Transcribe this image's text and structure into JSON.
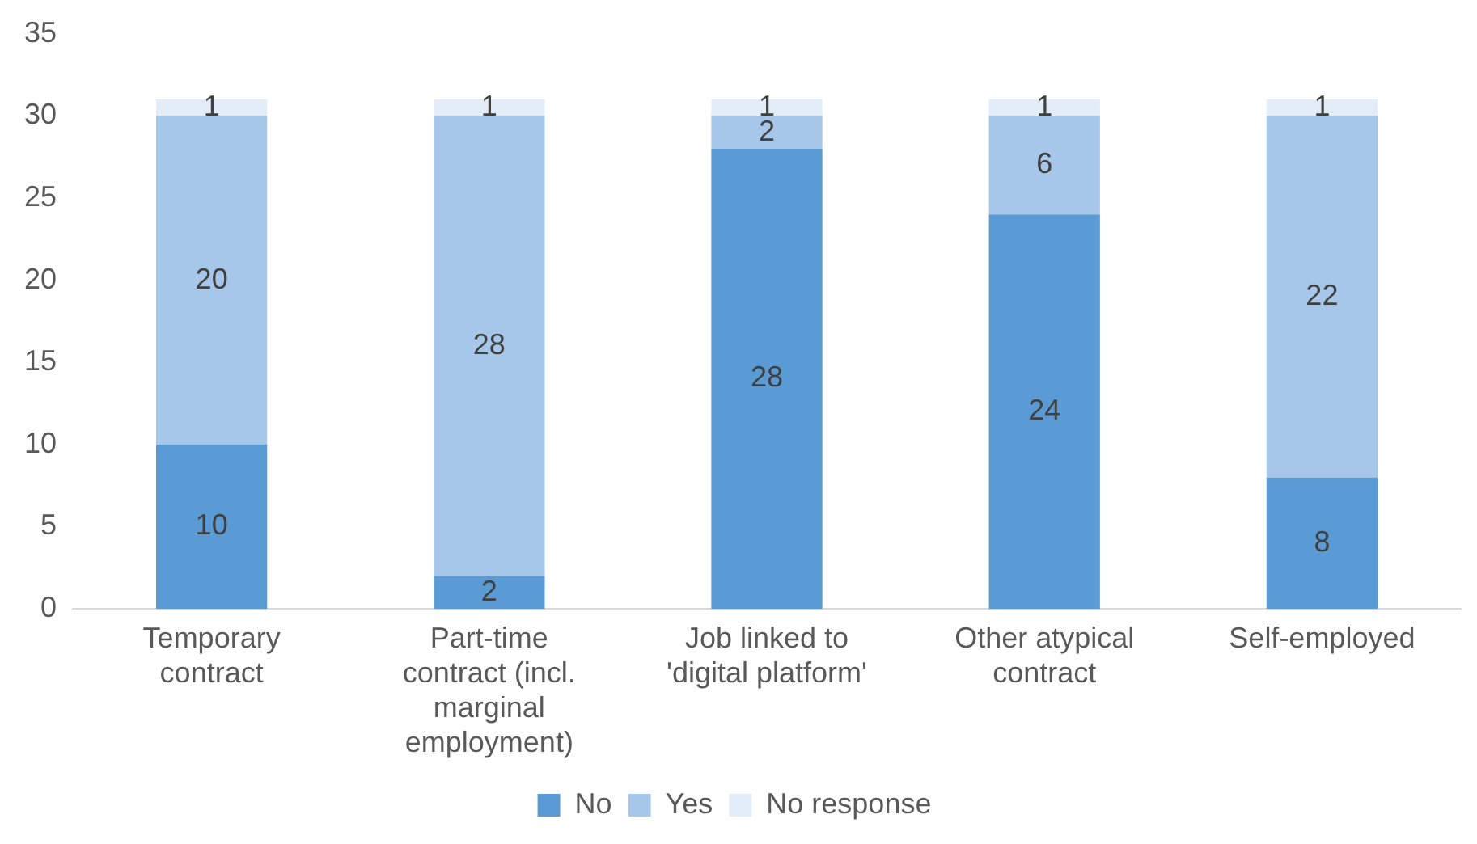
{
  "chart_data": {
    "type": "bar",
    "stacked": true,
    "categories": [
      "Temporary contract",
      "Part-time contract (incl. marginal employment)",
      "Job linked to 'digital platform'",
      "Other atypical contract",
      "Self-employed"
    ],
    "series": [
      {
        "name": "No",
        "color": "#5b9bd5",
        "values": [
          10,
          2,
          28,
          24,
          8
        ]
      },
      {
        "name": "Yes",
        "color": "#a7c7ea",
        "values": [
          20,
          28,
          2,
          6,
          22
        ]
      },
      {
        "name": "No response",
        "color": "#e2edf8",
        "values": [
          1,
          1,
          1,
          1,
          1
        ]
      }
    ],
    "ylim": [
      0,
      35
    ],
    "yticks": [
      0,
      5,
      10,
      15,
      20,
      25,
      30,
      35
    ],
    "grid": false,
    "legend": "bottom",
    "data_labels": true
  }
}
